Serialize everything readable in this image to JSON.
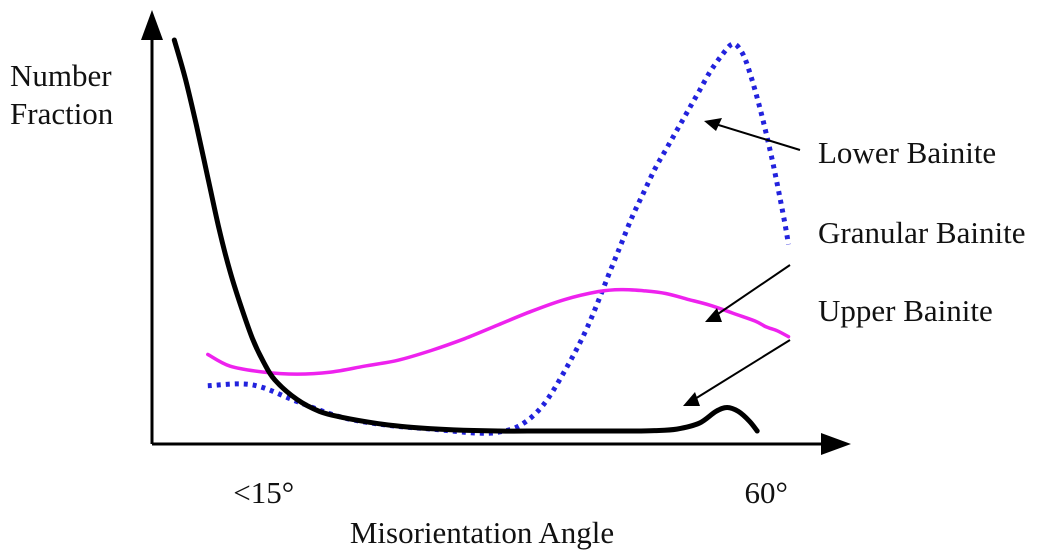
{
  "chart_data": {
    "type": "line",
    "title": "",
    "xlabel": "Misorientation Angle",
    "ylabel": [
      "Number",
      "Fraction"
    ],
    "x_tick_labels": [
      "<15°",
      "60°"
    ],
    "x_tick_values": [
      15,
      60
    ],
    "xlim": [
      5,
      65
    ],
    "ylim": [
      0,
      1
    ],
    "y_ticks_shown": false,
    "grid": false,
    "legend": "annotations with arrows on the right",
    "series": [
      {
        "name": "Lower Bainite",
        "color": "#2222dd",
        "line_style": "dotted",
        "x": [
          10,
          13,
          15,
          18,
          22,
          26,
          30,
          34,
          36,
          38,
          40,
          42,
          44,
          46,
          47,
          48,
          49,
          50,
          51,
          52,
          53,
          54,
          55,
          56,
          57,
          57.8,
          58.5,
          59.5,
          60.5,
          61.5,
          62
        ],
        "y": [
          0.12,
          0.125,
          0.115,
          0.08,
          0.04,
          0.02,
          0.01,
          0.0,
          0.002,
          0.02,
          0.07,
          0.16,
          0.27,
          0.41,
          0.48,
          0.55,
          0.61,
          0.67,
          0.72,
          0.77,
          0.82,
          0.87,
          0.92,
          0.96,
          0.99,
          0.97,
          0.92,
          0.82,
          0.7,
          0.56,
          0.48
        ]
      },
      {
        "name": "Granular Bainite",
        "color": "#ee22ee",
        "line_style": "solid",
        "x": [
          10,
          12,
          15,
          18,
          21,
          24,
          27,
          30,
          33,
          36,
          39,
          42,
          45,
          47,
          49,
          51,
          53,
          55,
          57,
          59,
          60,
          61,
          62
        ],
        "y": [
          0.2,
          0.17,
          0.155,
          0.15,
          0.155,
          0.17,
          0.185,
          0.21,
          0.24,
          0.275,
          0.31,
          0.34,
          0.36,
          0.365,
          0.362,
          0.355,
          0.34,
          0.325,
          0.305,
          0.285,
          0.27,
          0.26,
          0.245
        ]
      },
      {
        "name": "Upper Bainite",
        "color": "#000000",
        "line_style": "solid",
        "x": [
          7,
          8,
          9,
          10,
          11,
          12,
          13,
          14,
          15,
          16,
          18,
          20,
          22,
          25,
          28,
          32,
          36,
          40,
          44,
          48,
          50,
          52,
          54,
          55.5,
          56.5,
          57.5,
          58.5,
          59.2
        ],
        "y": [
          1.0,
          0.9,
          0.78,
          0.65,
          0.52,
          0.41,
          0.32,
          0.24,
          0.18,
          0.135,
          0.085,
          0.055,
          0.04,
          0.025,
          0.015,
          0.008,
          0.005,
          0.005,
          0.005,
          0.005,
          0.006,
          0.01,
          0.025,
          0.055,
          0.065,
          0.055,
          0.03,
          0.005
        ]
      }
    ],
    "annotations": [
      {
        "text": "Lower Bainite",
        "series": 0
      },
      {
        "text": "Granular Bainite",
        "series": 1
      },
      {
        "text": "Upper Bainite",
        "series": 2
      }
    ]
  }
}
